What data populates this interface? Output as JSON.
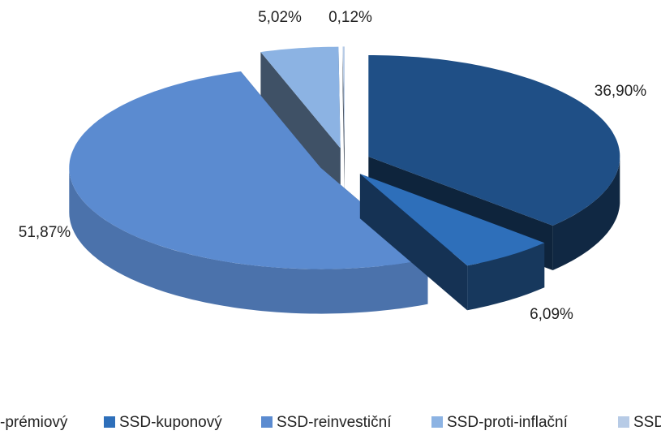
{
  "chart_data": {
    "type": "pie3d",
    "categories": [
      "-prémiový",
      "SSD-kuponový",
      "SSD-reinvestiční",
      "SSD-proti-inflační",
      "SSD"
    ],
    "values": [
      36.9,
      6.09,
      51.87,
      5.02,
      0.12
    ],
    "value_labels": [
      "36,90%",
      "6,09%",
      "51,87%",
      "5,02%",
      "0,12%"
    ],
    "colors": [
      "#1f4f86",
      "#2e6fba",
      "#5b8bd0",
      "#8cb3e3",
      "#b7cbe6"
    ],
    "legend": "bottom"
  }
}
